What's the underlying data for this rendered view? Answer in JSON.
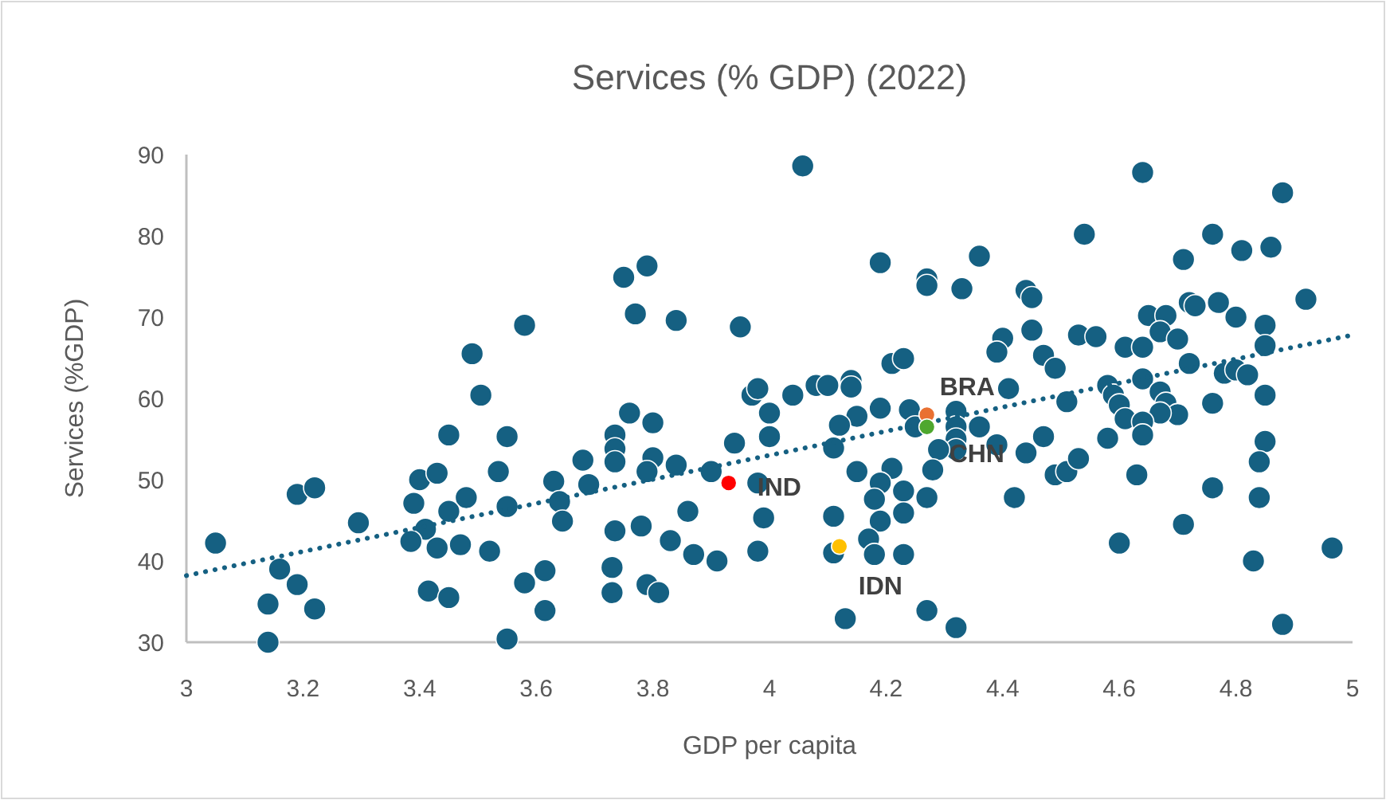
{
  "chart_data": {
    "type": "scatter",
    "title": "Services (% GDP) (2022)",
    "xlabel": "GDP per capita",
    "ylabel": "Services (%GDP)",
    "xlim": [
      3,
      5
    ],
    "xticks": [
      3,
      3.2,
      3.4,
      3.6,
      3.8,
      4,
      4.2,
      4.4,
      4.6,
      4.8,
      5
    ],
    "ylim": [
      30,
      90
    ],
    "yticks": [
      30,
      40,
      50,
      60,
      70,
      80,
      90
    ],
    "grid": false,
    "marker": "circle",
    "series": [
      {
        "color": "#156082",
        "x": [
          3.05,
          3.58,
          3.49,
          3.505,
          3.45,
          3.55,
          3.535,
          3.4,
          3.43,
          3.48,
          3.45,
          3.39,
          3.41,
          3.385,
          3.43,
          3.47,
          3.52,
          3.55,
          3.63,
          3.64,
          3.645,
          3.19,
          3.22,
          3.295,
          3.16,
          3.19,
          3.14,
          3.22,
          3.14,
          3.415,
          3.45,
          3.55,
          3.58,
          3.615,
          3.615,
          4.057,
          3.75,
          3.79,
          3.77,
          3.84,
          3.95,
          4.19,
          4.27,
          4.27,
          4.33,
          4.36,
          4.21,
          4.23,
          3.97,
          3.98,
          4.04,
          4.08,
          4.1,
          4.14,
          4.14,
          4.0,
          4.19,
          4.15,
          4.12,
          4.24,
          3.76,
          3.8,
          3.735,
          3.735,
          3.735,
          3.8,
          3.79,
          3.68,
          3.69,
          3.84,
          3.9,
          3.94,
          4.0,
          3.98,
          4.11,
          4.15,
          4.21,
          4.19,
          4.18,
          4.23,
          4.27,
          4.23,
          4.19,
          4.11,
          3.99,
          3.86,
          3.735,
          3.78,
          3.83,
          3.87,
          3.91,
          3.98,
          4.11,
          4.17,
          4.18,
          4.23,
          3.73,
          3.73,
          3.79,
          3.81,
          4.13,
          4.27,
          4.32,
          4.32,
          4.32,
          4.32,
          4.32,
          4.25,
          4.29,
          4.28,
          4.36,
          4.64,
          4.88,
          4.54,
          4.76,
          4.71,
          4.81,
          4.86,
          4.44,
          4.45,
          4.92,
          4.72,
          4.73,
          4.77,
          4.8,
          4.65,
          4.68,
          4.67,
          4.7,
          4.85,
          4.85,
          4.61,
          4.64,
          4.45,
          4.53,
          4.56,
          4.4,
          4.39,
          4.47,
          4.49,
          4.72,
          4.78,
          4.8,
          4.82,
          4.64,
          4.58,
          4.59,
          4.6,
          4.51,
          4.41,
          4.67,
          4.68,
          4.7,
          4.67,
          4.61,
          4.64,
          4.64,
          4.58,
          4.76,
          4.85,
          4.85,
          4.84,
          4.84,
          4.76,
          4.63,
          4.47,
          4.44,
          4.39,
          4.42,
          4.49,
          4.51,
          4.53,
          4.6,
          4.71,
          4.83,
          4.965,
          4.88
        ],
        "values": [
          42.2,
          69.0,
          65.5,
          60.4,
          55.5,
          55.3,
          51.0,
          50.0,
          50.8,
          47.8,
          46.1,
          47.1,
          43.9,
          42.4,
          41.6,
          42.0,
          41.2,
          46.7,
          49.8,
          47.3,
          44.9,
          48.2,
          49.0,
          44.7,
          39.0,
          37.1,
          34.7,
          34.1,
          30.0,
          36.3,
          35.5,
          30.4,
          37.3,
          38.8,
          33.9,
          88.6,
          74.9,
          76.3,
          70.4,
          69.6,
          68.8,
          76.7,
          74.7,
          73.9,
          73.5,
          77.5,
          64.3,
          64.9,
          60.4,
          61.2,
          60.4,
          61.6,
          61.6,
          62.2,
          61.4,
          58.2,
          58.8,
          57.8,
          56.7,
          58.6,
          58.2,
          57.0,
          55.5,
          53.8,
          52.2,
          52.7,
          51.0,
          52.4,
          49.4,
          51.8,
          51.0,
          54.5,
          55.3,
          49.6,
          53.9,
          51.0,
          51.4,
          49.6,
          47.6,
          48.6,
          47.8,
          45.9,
          44.9,
          45.5,
          45.3,
          46.1,
          43.7,
          44.3,
          42.5,
          40.8,
          40.0,
          41.2,
          41.0,
          42.7,
          40.8,
          40.8,
          39.2,
          36.1,
          37.1,
          36.1,
          32.9,
          33.9,
          31.8,
          58.4,
          56.5,
          55.0,
          53.7,
          56.5,
          53.7,
          51.2,
          56.5,
          87.8,
          85.3,
          80.2,
          80.2,
          77.1,
          78.2,
          78.6,
          73.3,
          72.4,
          72.2,
          71.8,
          71.4,
          71.8,
          70.0,
          70.2,
          70.2,
          68.2,
          67.3,
          69.0,
          66.5,
          66.3,
          66.3,
          68.4,
          67.8,
          67.6,
          67.4,
          65.7,
          65.3,
          63.7,
          64.3,
          63.1,
          63.5,
          62.9,
          62.4,
          61.6,
          60.4,
          59.2,
          59.6,
          61.2,
          60.8,
          59.4,
          58.0,
          58.2,
          57.5,
          57.1,
          55.5,
          55.1,
          59.4,
          60.4,
          54.7,
          52.2,
          47.8,
          49.0,
          50.6,
          55.3,
          53.3,
          54.3,
          47.8,
          50.6,
          51.0,
          52.6,
          42.2,
          44.5,
          40.0,
          41.6,
          32.2
        ]
      },
      {
        "type": "line",
        "line_style": "dotted",
        "marker": "none",
        "color": "#156082",
        "x": [
          3,
          5
        ],
        "values": [
          38.2,
          67.8
        ]
      },
      {
        "name": "IND",
        "color": "#ff0000",
        "x": [
          3.93
        ],
        "values": [
          49.6
        ]
      },
      {
        "name": "BRA",
        "color": "#e97132",
        "x": [
          4.27
        ],
        "values": [
          58.0
        ]
      },
      {
        "name": "CHN",
        "color": "#4ea72e",
        "x": [
          4.27
        ],
        "values": [
          56.5
        ]
      },
      {
        "name": "IDN",
        "color": "#ffc000",
        "x": [
          4.12
        ],
        "values": [
          41.8
        ]
      }
    ]
  }
}
